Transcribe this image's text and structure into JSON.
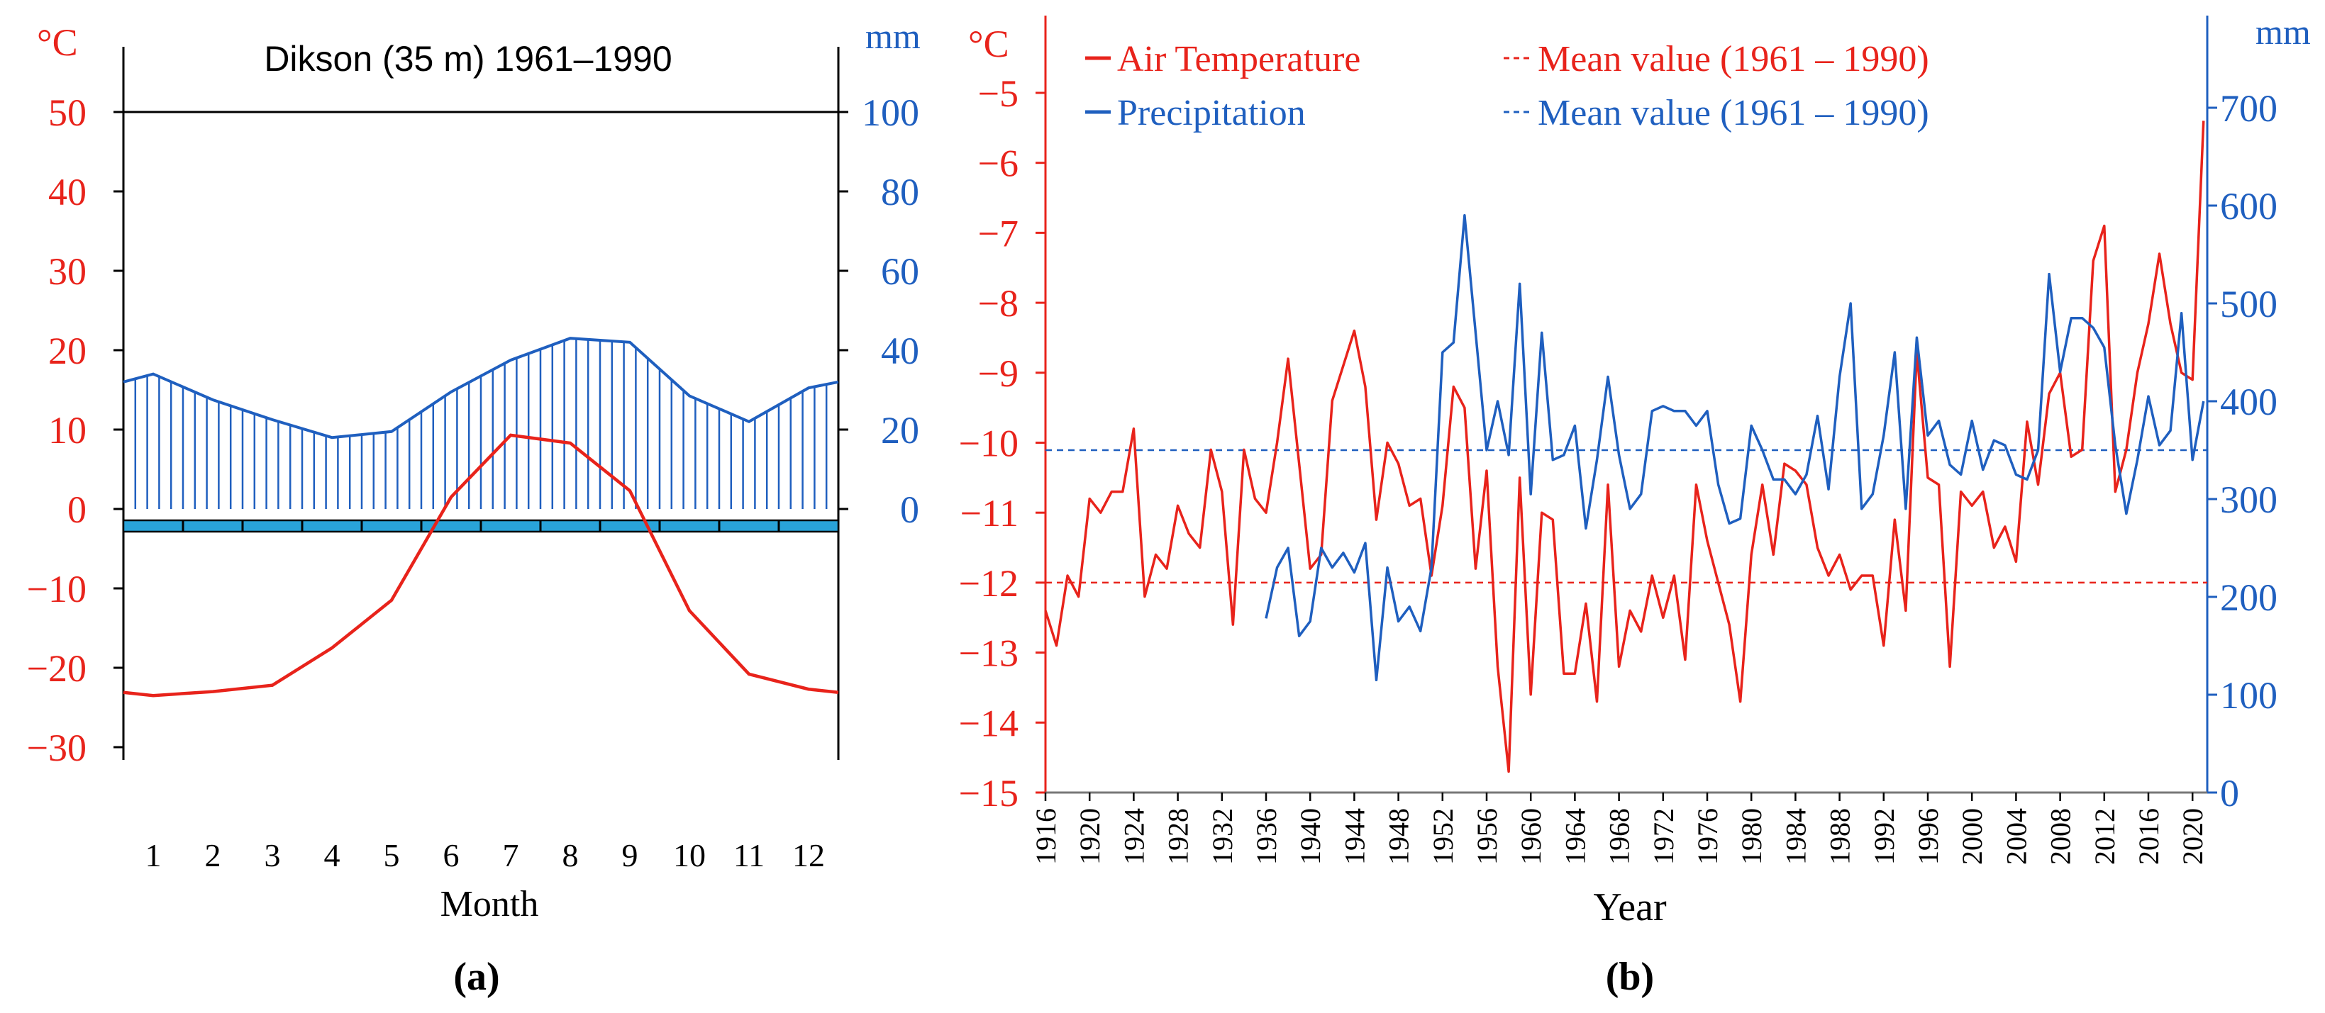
{
  "colors": {
    "temperature": "#e8231b",
    "precipitation": "#1f5fbf",
    "ground_bar": "#29a3d9",
    "axis": "#000000"
  },
  "panels": {
    "a_label": "(a)",
    "b_label": "(b)"
  },
  "chart_data": [
    {
      "id": "a",
      "type": "line",
      "title": "Dikson (35 m) 1961–1990",
      "xlabel": "Month",
      "y_left_unit": "°C",
      "y_right_unit": "mm",
      "y_left_ticks": [
        "50",
        "40",
        "30",
        "20",
        "10",
        "0",
        "−10",
        "−20",
        "−30"
      ],
      "y_left_tick_values": [
        50,
        40,
        30,
        20,
        10,
        0,
        -10,
        -20,
        -30
      ],
      "y_right_ticks": [
        "100",
        "80",
        "60",
        "40",
        "20",
        "0"
      ],
      "y_right_tick_values": [
        100,
        80,
        60,
        40,
        20,
        0
      ],
      "ylim_left": [
        -30,
        50
      ],
      "ylim_right": [
        0,
        100
      ],
      "categories": [
        "1",
        "2",
        "3",
        "4",
        "5",
        "6",
        "7",
        "8",
        "9",
        "10",
        "11",
        "12"
      ],
      "series": [
        {
          "name": "Air Temperature",
          "axis": "left",
          "values": [
            -23.5,
            -23,
            -22.2,
            -17.5,
            -11.5,
            1.5,
            9.3,
            8.3,
            2.3,
            -12.8,
            -20.8,
            -22.7
          ],
          "start_value": -23.1,
          "end_value": -23.1
        },
        {
          "name": "Precipitation",
          "axis": "right",
          "values": [
            34,
            27.5,
            22.5,
            18,
            19.5,
            29.5,
            37.5,
            43,
            42,
            28.5,
            22,
            30.5
          ],
          "start_value": 32,
          "end_value": 32
        }
      ]
    },
    {
      "id": "b",
      "type": "line",
      "xlabel": "Year",
      "y_left_unit": "°C",
      "y_right_unit": "mm",
      "ylim_left": [
        -15,
        -4
      ],
      "ylim_right": [
        0,
        780
      ],
      "y_left_ticks": [
        "−5",
        "−6",
        "−7",
        "−8",
        "−9",
        "−10",
        "−11",
        "−12",
        "−13",
        "−14",
        "−15"
      ],
      "y_left_tick_values": [
        -5,
        -6,
        -7,
        -8,
        -9,
        -10,
        -11,
        -12,
        -13,
        -14,
        -15
      ],
      "y_right_ticks": [
        "700",
        "600",
        "500",
        "400",
        "300",
        "200",
        "100",
        "0"
      ],
      "y_right_tick_values": [
        700,
        600,
        500,
        400,
        300,
        200,
        100,
        0
      ],
      "x_ticks": [
        "1916",
        "1920",
        "1924",
        "1928",
        "1932",
        "1936",
        "1940",
        "1944",
        "1948",
        "1952",
        "1956",
        "1960",
        "1964",
        "1968",
        "1972",
        "1976",
        "1980",
        "1984",
        "1988",
        "1992",
        "1996",
        "2000",
        "2004",
        "2008",
        "2012",
        "2016",
        "2020"
      ],
      "x_tick_values": [
        1916,
        1920,
        1924,
        1928,
        1932,
        1936,
        1940,
        1944,
        1948,
        1952,
        1956,
        1960,
        1964,
        1968,
        1972,
        1976,
        1980,
        1984,
        1988,
        1992,
        1996,
        2000,
        2004,
        2008,
        2012,
        2016,
        2020
      ],
      "xlim": [
        1916,
        2020
      ],
      "legend": {
        "temperature": "Air Temperature",
        "precipitation": "Precipitation",
        "temp_mean": "Mean value (1961 – 1990)",
        "precip_mean": "Mean value (1961 – 1990)"
      },
      "temperature": {
        "x_start": 1916,
        "values": [
          -12.4,
          -12.9,
          -11.9,
          -12.2,
          -10.8,
          -11.0,
          -10.7,
          -10.7,
          -9.8,
          -12.2,
          -11.6,
          -11.8,
          -10.9,
          -11.3,
          -11.5,
          -10.1,
          -10.7,
          -12.6,
          -10.1,
          -10.8,
          -11.0,
          -10.0,
          -8.8,
          -10.3,
          -11.8,
          -11.6,
          -9.4,
          -8.9,
          -8.4,
          -9.2,
          -11.1,
          -10.0,
          -10.3,
          -10.9,
          -10.8,
          -11.9,
          -10.9,
          -9.2,
          -9.5,
          -11.8,
          -10.4,
          -13.2,
          -14.7,
          -10.5,
          -13.6,
          -11.0,
          -11.1,
          -13.3,
          -13.3,
          -12.3,
          -13.7,
          -10.6,
          -13.2,
          -12.4,
          -12.7,
          -11.9,
          -12.5,
          -11.9,
          -13.1,
          -10.6,
          -11.4,
          -12.0,
          -12.6,
          -13.7,
          -11.6,
          -10.6,
          -11.6,
          -10.3,
          -10.4,
          -10.6,
          -11.5,
          -11.9,
          -11.6,
          -12.1,
          -11.9,
          -11.9,
          -12.9,
          -11.1,
          -12.4,
          -8.7,
          -10.5,
          -10.6,
          -13.2,
          -10.7,
          -10.9,
          -10.7,
          -11.5,
          -11.2,
          -11.7,
          -9.7,
          -10.6,
          -9.3,
          -9.0,
          -10.2,
          -10.1,
          -7.4,
          -6.9,
          -10.7,
          -10.1,
          -9.0,
          -8.3,
          -7.3,
          -8.3,
          -9.0,
          -9.1,
          -5.4
        ]
      },
      "precipitation": {
        "x_start": 1936,
        "values": [
          178,
          230,
          250,
          160,
          175,
          250,
          230,
          245,
          225,
          255,
          115,
          230,
          175,
          190,
          165,
          230,
          450,
          460,
          590,
          470,
          350,
          400,
          345,
          520,
          305,
          470,
          340,
          345,
          375,
          270,
          340,
          425,
          345,
          290,
          305,
          390,
          395,
          390,
          390,
          375,
          390,
          315,
          275,
          280,
          375,
          350,
          320,
          320,
          305,
          325,
          385,
          310,
          425,
          500,
          290,
          305,
          365,
          450,
          290,
          465,
          365,
          380,
          335,
          325,
          380,
          330,
          360,
          355,
          325,
          320,
          350,
          530,
          430,
          485,
          485,
          475,
          455,
          355,
          285,
          340,
          405,
          355,
          370,
          490,
          340,
          400
        ]
      },
      "temp_mean": -12.0,
      "precip_mean": 350
    }
  ]
}
